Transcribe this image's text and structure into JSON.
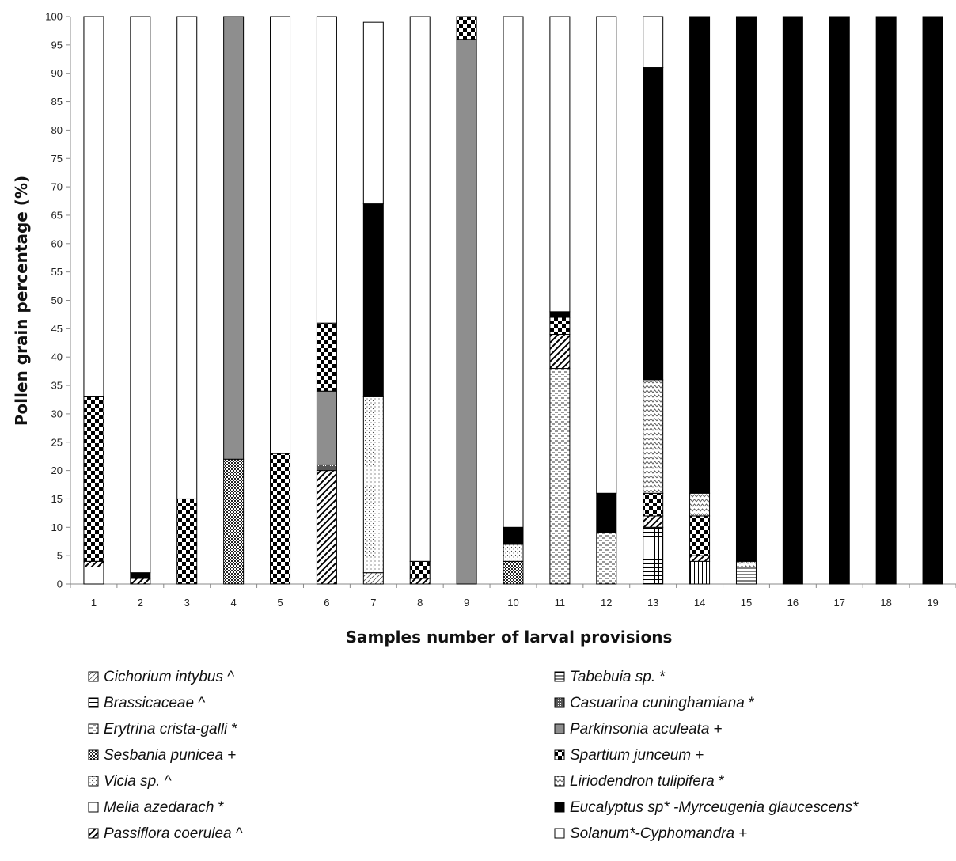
{
  "chart_data": {
    "type": "bar",
    "stacked": true,
    "title": "",
    "xlabel": "Samples number of larval provisions",
    "ylabel": "Pollen grain percentage (%)",
    "ylim": [
      0,
      100
    ],
    "y_ticks": [
      0,
      5,
      10,
      15,
      20,
      25,
      30,
      35,
      40,
      45,
      50,
      55,
      60,
      65,
      70,
      75,
      80,
      85,
      90,
      95,
      100
    ],
    "grid": false,
    "legend_position": "bottom",
    "categories": [
      "1",
      "2",
      "3",
      "4",
      "5",
      "6",
      "7",
      "8",
      "9",
      "10",
      "11",
      "12",
      "13",
      "14",
      "15",
      "16",
      "17",
      "18",
      "19"
    ],
    "series": [
      {
        "name": "Cichorium intybus",
        "suffix": " ^",
        "pattern": "diag-thin",
        "values": [
          0,
          0,
          0,
          0,
          0,
          0,
          2,
          0,
          0,
          0,
          0,
          0,
          0,
          0,
          0,
          0,
          0,
          0,
          0
        ]
      },
      {
        "name": "Brassicaceae",
        "suffix": " ^",
        "pattern": "grid",
        "values": [
          0,
          0,
          0,
          0,
          0,
          0,
          0,
          0,
          0,
          0,
          0,
          0,
          10,
          0,
          0,
          0,
          0,
          0,
          0
        ]
      },
      {
        "name": "Erytrina crista-galli",
        "suffix": " *",
        "pattern": "dash",
        "values": [
          0,
          0,
          0,
          0,
          0,
          0,
          0,
          0,
          0,
          0,
          38,
          9,
          0,
          0,
          0,
          0,
          0,
          0,
          0
        ]
      },
      {
        "name": "Sesbania punicea",
        "suffix": " +",
        "pattern": "cross-fine",
        "values": [
          0,
          0,
          0,
          22,
          0,
          0,
          0,
          0,
          0,
          4,
          0,
          0,
          0,
          0,
          0,
          0,
          0,
          0,
          0
        ]
      },
      {
        "name": "Vicia sp.",
        "suffix": "  ^",
        "pattern": "dots",
        "values": [
          0,
          0,
          0,
          0,
          0,
          0,
          31,
          0,
          0,
          3,
          0,
          0,
          0,
          0,
          0,
          0,
          0,
          0,
          0
        ]
      },
      {
        "name": "Melia azedarach",
        "suffix": " *",
        "pattern": "vlines",
        "values": [
          3,
          0,
          0,
          0,
          0,
          0,
          0,
          0,
          0,
          0,
          0,
          0,
          0,
          4,
          0,
          0,
          0,
          0,
          0
        ]
      },
      {
        "name": "Passiflora coerulea",
        "suffix": " ^",
        "pattern": "diag",
        "values": [
          1,
          1,
          0,
          0,
          0,
          20,
          0,
          1,
          0,
          0,
          6,
          0,
          2,
          1,
          0,
          0,
          0,
          0,
          0
        ]
      },
      {
        "name": "Tabebuia sp.",
        "suffix": " *",
        "pattern": "hlines",
        "values": [
          0,
          0,
          0,
          0,
          0,
          0,
          0,
          0,
          0,
          0,
          0,
          0,
          0,
          0,
          3,
          0,
          0,
          0,
          0
        ]
      },
      {
        "name": "Casuarina cuninghamiana",
        "suffix": " *",
        "pattern": "dense",
        "values": [
          0,
          0,
          0,
          0,
          0,
          1,
          0,
          0,
          0,
          0,
          0,
          0,
          0,
          0,
          0,
          0,
          0,
          0,
          0
        ]
      },
      {
        "name": "Parkinsonia aculeata",
        "suffix": " +",
        "pattern": "gray",
        "values": [
          0,
          0,
          0,
          78,
          0,
          13,
          0,
          0,
          96,
          0,
          0,
          0,
          0,
          0,
          0,
          0,
          0,
          0,
          0
        ]
      },
      {
        "name": "Spartium junceum",
        "suffix": " +",
        "pattern": "check",
        "values": [
          29,
          0,
          15,
          0,
          23,
          12,
          0,
          3,
          4,
          0,
          3,
          0,
          4,
          7,
          0,
          0,
          0,
          0,
          0
        ]
      },
      {
        "name": "Liriodendron tulipifera",
        "suffix": " *",
        "pattern": "zigzag",
        "values": [
          0,
          0,
          0,
          0,
          0,
          0,
          0,
          0,
          0,
          0,
          0,
          0,
          20,
          4,
          1,
          0,
          0,
          0,
          0
        ]
      },
      {
        "name": "Eucalyptus sp* -Myrceugenia glaucescens*",
        "suffix": "",
        "pattern": "black",
        "values": [
          0,
          1,
          0,
          0,
          0,
          0,
          34,
          0,
          0,
          3,
          1,
          7,
          55,
          84,
          96,
          100,
          100,
          100,
          100
        ]
      },
      {
        "name": "Solanum*-Cyphomandra",
        "suffix": " +",
        "pattern": "white",
        "values": [
          67,
          98,
          85,
          0,
          77,
          54,
          32,
          96,
          0,
          90,
          52,
          84,
          9,
          0,
          0,
          0,
          0,
          0,
          0
        ]
      }
    ]
  }
}
